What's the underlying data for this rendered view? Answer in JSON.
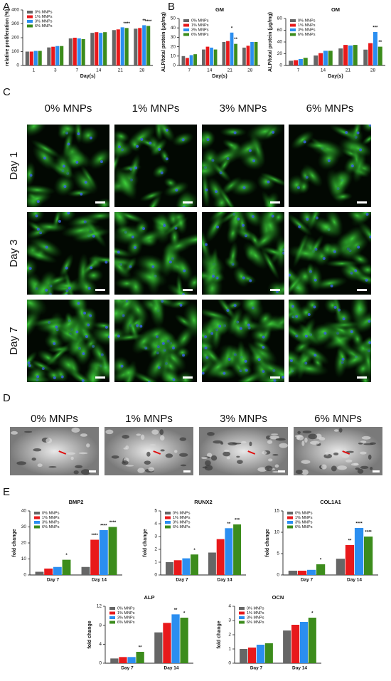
{
  "panel_labels": [
    "A",
    "B",
    "C",
    "D",
    "E"
  ],
  "chart_data": [
    {
      "type": "bar",
      "ylabel": "relative proliferation (%)",
      "xlabel": "Day(s)",
      "categories": [
        "1",
        "3",
        "7",
        "14",
        "21",
        "28"
      ],
      "series": [
        {
          "name": "0% MNPs",
          "color": "#666666",
          "values": [
            100,
            130,
            195,
            235,
            255,
            265
          ]
        },
        {
          "name": "1% MNPs",
          "color": "#e8191b",
          "values": [
            100,
            135,
            200,
            240,
            260,
            270
          ]
        },
        {
          "name": "3% MNPs",
          "color": "#2b8ef0",
          "values": [
            105,
            140,
            195,
            235,
            275,
            290
          ]
        },
        {
          "name": "6% MNPs",
          "color": "#3c8c1c",
          "values": [
            105,
            140,
            190,
            240,
            270,
            285
          ]
        }
      ],
      "ylim": [
        0,
        400
      ],
      "yticks": [
        0,
        100,
        200,
        300,
        400
      ],
      "annotations": [
        {
          "text": "****",
          "category": 4,
          "series": 3
        },
        {
          "text": "**",
          "category": 5,
          "series": 2
        },
        {
          "text": "****",
          "category": 5,
          "series": 3
        }
      ]
    },
    {
      "type": "bar",
      "title": "GM",
      "ylabel": "ALP/total protein (μg/mg)",
      "xlabel": "Day(s)",
      "categories": [
        "7",
        "14",
        "21",
        "28"
      ],
      "series": [
        {
          "name": "0% MNPs",
          "color": "#666666",
          "values": [
            10,
            17,
            25,
            19
          ]
        },
        {
          "name": "1% MNPs",
          "color": "#e8191b",
          "values": [
            8,
            20,
            26,
            21
          ]
        },
        {
          "name": "3% MNPs",
          "color": "#2b8ef0",
          "values": [
            11,
            19,
            35,
            25
          ]
        },
        {
          "name": "6% MNPs",
          "color": "#3c8c1c",
          "values": [
            12,
            17,
            23,
            25
          ]
        }
      ],
      "ylim": [
        0,
        50
      ],
      "yticks": [
        0,
        10,
        20,
        30,
        40,
        50
      ],
      "annotations": [
        {
          "text": "*",
          "category": 2,
          "series": 2
        },
        {
          "text": "**",
          "category": 2,
          "series": 3
        }
      ]
    },
    {
      "type": "bar",
      "title": "OM",
      "ylabel": "ALP/total protein (μg/mg)",
      "xlabel": "Day(s)",
      "categories": [
        "7",
        "14",
        "21",
        "28"
      ],
      "series": [
        {
          "name": "0% MNPs",
          "color": "#666666",
          "values": [
            8,
            17,
            29,
            27
          ]
        },
        {
          "name": "1% MNPs",
          "color": "#e8191b",
          "values": [
            9,
            21,
            35,
            38
          ]
        },
        {
          "name": "3% MNPs",
          "color": "#2b8ef0",
          "values": [
            11,
            25,
            34,
            57
          ]
        },
        {
          "name": "6% MNPs",
          "color": "#3c8c1c",
          "values": [
            13,
            25,
            35,
            32
          ]
        }
      ],
      "ylim": [
        0,
        80
      ],
      "yticks": [
        0,
        20,
        40,
        60,
        80
      ],
      "annotations": [
        {
          "text": "***",
          "category": 3,
          "series": 2
        },
        {
          "text": "**",
          "category": 3,
          "series": 3
        }
      ]
    },
    {
      "type": "bar",
      "title": "BMP2",
      "ylabel": "fold change",
      "categories": [
        "Day 7",
        "Day 14"
      ],
      "series": [
        {
          "name": "0% MNPs",
          "color": "#666666",
          "values": [
            2,
            5
          ]
        },
        {
          "name": "1% MNPs",
          "color": "#e8191b",
          "values": [
            4,
            22
          ]
        },
        {
          "name": "3% MNPs",
          "color": "#2b8ef0",
          "values": [
            5,
            28
          ]
        },
        {
          "name": "6% MNPs",
          "color": "#3c8c1c",
          "values": [
            9.5,
            30
          ]
        }
      ],
      "ylim": [
        0,
        40
      ],
      "yticks": [
        0,
        10,
        20,
        30,
        40
      ],
      "annotations": [
        {
          "text": "*",
          "category": 0,
          "series": 3
        },
        {
          "text": "****",
          "category": 1,
          "series": 1
        },
        {
          "text": "****",
          "category": 1,
          "series": 2
        },
        {
          "text": "****",
          "category": 1,
          "series": 3
        }
      ]
    },
    {
      "type": "bar",
      "title": "RUNX2",
      "ylabel": "fold change",
      "categories": [
        "Day 7",
        "Day 14"
      ],
      "series": [
        {
          "name": "0% MNPs",
          "color": "#666666",
          "values": [
            1,
            1.75
          ]
        },
        {
          "name": "1% MNPs",
          "color": "#e8191b",
          "values": [
            1.15,
            2.8
          ]
        },
        {
          "name": "3% MNPs",
          "color": "#2b8ef0",
          "values": [
            1.3,
            3.65
          ]
        },
        {
          "name": "6% MNPs",
          "color": "#3c8c1c",
          "values": [
            1.6,
            3.95
          ]
        }
      ],
      "ylim": [
        0,
        5
      ],
      "yticks": [
        0,
        1,
        2,
        3,
        4,
        5
      ],
      "annotations": [
        {
          "text": "*",
          "category": 0,
          "series": 3
        },
        {
          "text": "**",
          "category": 1,
          "series": 2
        },
        {
          "text": "***",
          "category": 1,
          "series": 3
        }
      ]
    },
    {
      "type": "bar",
      "title": "COL1A1",
      "ylabel": "fold change",
      "categories": [
        "Day 7",
        "Day 14"
      ],
      "series": [
        {
          "name": "0% MNPs",
          "color": "#666666",
          "values": [
            1,
            3.8
          ]
        },
        {
          "name": "1% MNPs",
          "color": "#e8191b",
          "values": [
            1,
            7
          ]
        },
        {
          "name": "3% MNPs",
          "color": "#2b8ef0",
          "values": [
            1.2,
            11
          ]
        },
        {
          "name": "6% MNPs",
          "color": "#3c8c1c",
          "values": [
            2.5,
            9
          ]
        }
      ],
      "ylim": [
        0,
        15
      ],
      "yticks": [
        0,
        5,
        10,
        15
      ],
      "annotations": [
        {
          "text": "*",
          "category": 0,
          "series": 3
        },
        {
          "text": "**",
          "category": 1,
          "series": 1
        },
        {
          "text": "****",
          "category": 1,
          "series": 2
        },
        {
          "text": "****",
          "category": 1,
          "series": 3
        }
      ]
    },
    {
      "type": "bar",
      "title": "ALP",
      "ylabel": "fold change",
      "categories": [
        "Day 7",
        "Day 14"
      ],
      "series": [
        {
          "name": "0% MNPs",
          "color": "#666666",
          "values": [
            1,
            6.5
          ]
        },
        {
          "name": "1% MNPs",
          "color": "#e8191b",
          "values": [
            1.3,
            8.5
          ]
        },
        {
          "name": "3% MNPs",
          "color": "#2b8ef0",
          "values": [
            1.3,
            10.3
          ]
        },
        {
          "name": "6% MNPs",
          "color": "#3c8c1c",
          "values": [
            2.4,
            9.6
          ]
        }
      ],
      "ylim": [
        0,
        12
      ],
      "yticks": [
        0,
        4,
        8,
        12
      ],
      "annotations": [
        {
          "text": "**",
          "category": 0,
          "series": 3
        },
        {
          "text": "**",
          "category": 1,
          "series": 2
        },
        {
          "text": "*",
          "category": 1,
          "series": 3
        }
      ]
    },
    {
      "type": "bar",
      "title": "OCN",
      "ylabel": "fold change",
      "categories": [
        "Day 7",
        "Day 14"
      ],
      "series": [
        {
          "name": "0% MNPs",
          "color": "#666666",
          "values": [
            1,
            2.3
          ]
        },
        {
          "name": "1% MNPs",
          "color": "#e8191b",
          "values": [
            1.1,
            2.7
          ]
        },
        {
          "name": "3% MNPs",
          "color": "#2b8ef0",
          "values": [
            1.3,
            2.9
          ]
        },
        {
          "name": "6% MNPs",
          "color": "#3c8c1c",
          "values": [
            1.4,
            3.2
          ]
        }
      ],
      "ylim": [
        0,
        4
      ],
      "yticks": [
        0,
        1,
        2,
        3,
        4
      ],
      "annotations": [
        {
          "text": "*",
          "category": 1,
          "series": 3
        }
      ]
    }
  ],
  "microscopy": {
    "columns": [
      "0% MNPs",
      "1% MNPs",
      "3% MNPs",
      "6% MNPs"
    ],
    "rows": [
      "Day 1",
      "Day 3",
      "Day 7"
    ]
  },
  "sem": {
    "columns": [
      "0% MNPs",
      "1% MNPs",
      "3% MNPs",
      "6% MNPs"
    ]
  }
}
